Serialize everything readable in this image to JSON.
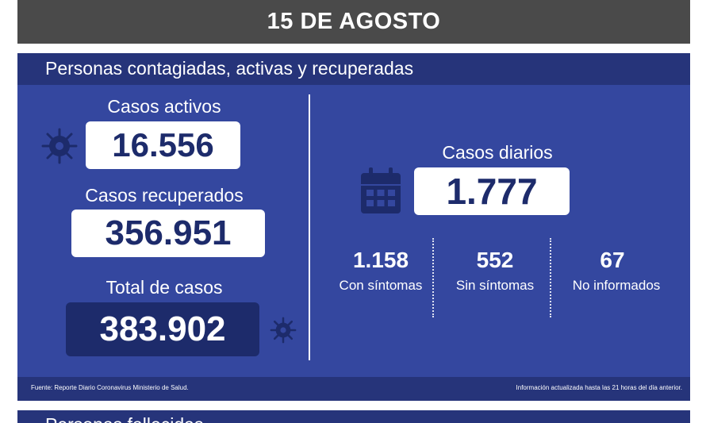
{
  "header": {
    "date": "15 DE AGOSTO"
  },
  "panel": {
    "title": "Personas contagiadas, activas y recuperadas",
    "activos": {
      "label": "Casos activos",
      "value": "16.556"
    },
    "recuperados": {
      "label": "Casos recuperados",
      "value": "356.951"
    },
    "total": {
      "label": "Total de casos",
      "value": "383.902"
    },
    "diarios": {
      "label": "Casos diarios",
      "value": "1.777"
    },
    "breakdown": [
      {
        "value": "1.158",
        "label": "Con síntomas"
      },
      {
        "value": "552",
        "label": "Sin síntomas"
      },
      {
        "value": "67",
        "label": "No informados"
      }
    ],
    "footer_source": "Fuente: Reporte Diario Coronavirus Ministerio de Salud.",
    "footer_note": "Información actualizada hasta las 21 horas  del día anterior."
  },
  "panel2": {
    "title": "Personas fallecidas"
  },
  "icons": {
    "virus": "virus-icon",
    "calendar": "calendar-icon"
  },
  "colors": {
    "panel": "#34479f",
    "panel_dark": "#26347a",
    "header": "#4a4a4a",
    "box_text": "#1d2b6b"
  }
}
